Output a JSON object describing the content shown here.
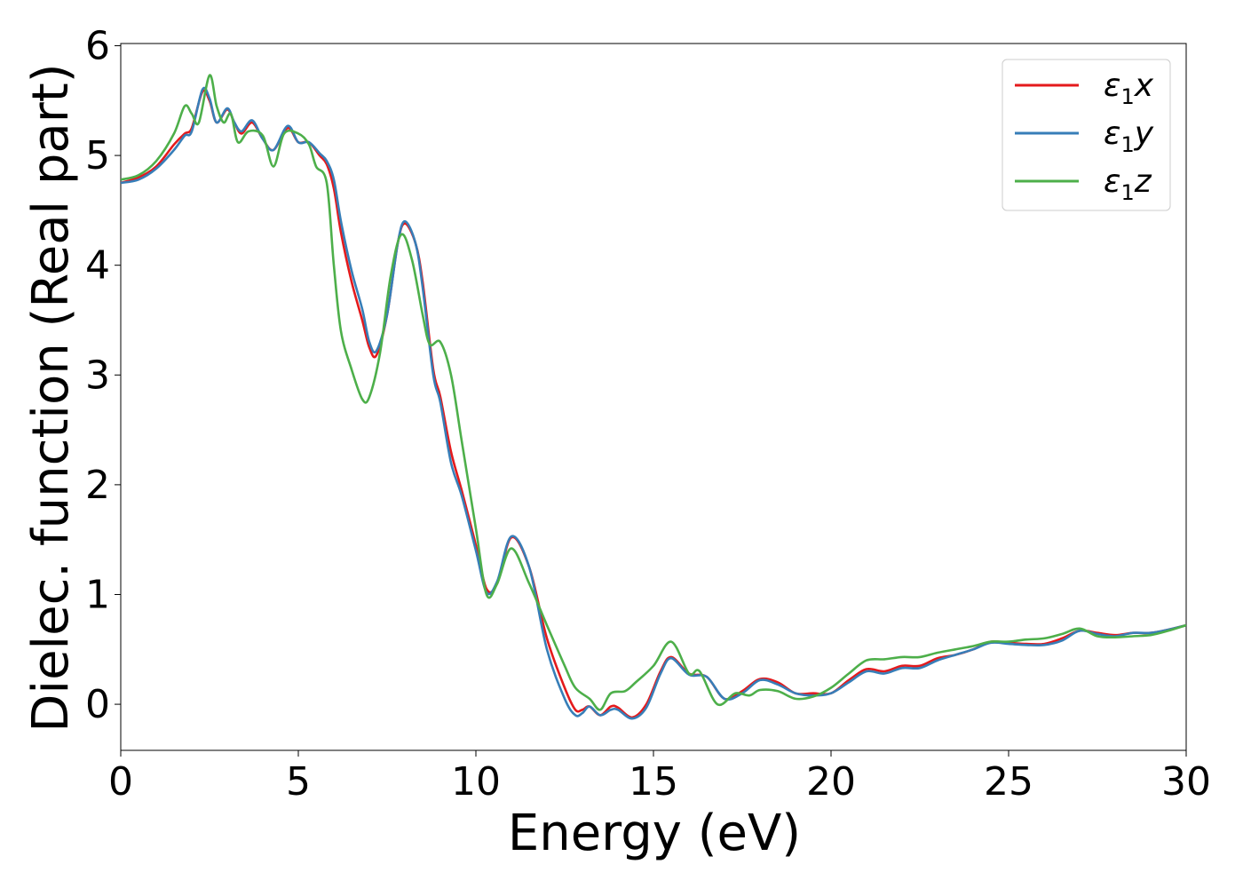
{
  "chart_data": {
    "type": "line",
    "xlabel": "Energy (eV)",
    "ylabel": "Dielec. function (Real part)",
    "xlim": [
      0,
      30
    ],
    "ylim": [
      -0.42,
      6.02
    ],
    "xticks": [
      0,
      5,
      10,
      15,
      20,
      25,
      30
    ],
    "yticks": [
      0,
      1,
      2,
      3,
      4,
      5,
      6
    ],
    "grid": false,
    "legend_position": "top-right",
    "series": [
      {
        "name": "ε₁x",
        "legend_base": "ε",
        "legend_sub": "1",
        "legend_var": "x",
        "color": "#e41a1c",
        "points": [
          [
            0,
            4.75
          ],
          [
            0.5,
            4.8
          ],
          [
            1.0,
            4.9
          ],
          [
            1.5,
            5.1
          ],
          [
            1.8,
            5.2
          ],
          [
            2.0,
            5.25
          ],
          [
            2.3,
            5.58
          ],
          [
            2.5,
            5.5
          ],
          [
            2.7,
            5.3
          ],
          [
            3.0,
            5.42
          ],
          [
            3.2,
            5.3
          ],
          [
            3.4,
            5.2
          ],
          [
            3.7,
            5.3
          ],
          [
            4.0,
            5.15
          ],
          [
            4.3,
            5.05
          ],
          [
            4.7,
            5.25
          ],
          [
            5.0,
            5.12
          ],
          [
            5.3,
            5.12
          ],
          [
            5.6,
            5.0
          ],
          [
            5.8,
            4.92
          ],
          [
            6.0,
            4.7
          ],
          [
            6.2,
            4.3
          ],
          [
            6.5,
            3.85
          ],
          [
            6.8,
            3.5
          ],
          [
            7.0,
            3.25
          ],
          [
            7.2,
            3.18
          ],
          [
            7.5,
            3.55
          ],
          [
            7.8,
            4.2
          ],
          [
            8.0,
            4.38
          ],
          [
            8.3,
            4.2
          ],
          [
            8.5,
            3.85
          ],
          [
            8.8,
            3.05
          ],
          [
            9.0,
            2.8
          ],
          [
            9.3,
            2.3
          ],
          [
            9.6,
            1.95
          ],
          [
            10.0,
            1.45
          ],
          [
            10.3,
            1.05
          ],
          [
            10.6,
            1.1
          ],
          [
            11.0,
            1.52
          ],
          [
            11.5,
            1.25
          ],
          [
            12.0,
            0.6
          ],
          [
            12.5,
            0.15
          ],
          [
            12.8,
            -0.05
          ],
          [
            13.0,
            -0.05
          ],
          [
            13.2,
            -0.02
          ],
          [
            13.5,
            -0.1
          ],
          [
            13.8,
            -0.02
          ],
          [
            14.0,
            -0.03
          ],
          [
            14.4,
            -0.12
          ],
          [
            14.8,
            0.0
          ],
          [
            15.2,
            0.3
          ],
          [
            15.5,
            0.43
          ],
          [
            16.0,
            0.28
          ],
          [
            16.5,
            0.25
          ],
          [
            17.0,
            0.05
          ],
          [
            17.5,
            0.12
          ],
          [
            18.0,
            0.23
          ],
          [
            18.5,
            0.2
          ],
          [
            19.0,
            0.1
          ],
          [
            19.5,
            0.1
          ],
          [
            20.0,
            0.1
          ],
          [
            20.5,
            0.22
          ],
          [
            21.0,
            0.32
          ],
          [
            21.5,
            0.3
          ],
          [
            22.0,
            0.35
          ],
          [
            22.5,
            0.35
          ],
          [
            23.0,
            0.42
          ],
          [
            23.5,
            0.45
          ],
          [
            24.0,
            0.5
          ],
          [
            24.5,
            0.57
          ],
          [
            25.0,
            0.56
          ],
          [
            25.5,
            0.55
          ],
          [
            26.0,
            0.55
          ],
          [
            26.5,
            0.6
          ],
          [
            27.0,
            0.67
          ],
          [
            27.5,
            0.65
          ],
          [
            28.0,
            0.63
          ],
          [
            28.5,
            0.65
          ],
          [
            29.0,
            0.65
          ],
          [
            29.5,
            0.68
          ],
          [
            30.0,
            0.72
          ]
        ]
      },
      {
        "name": "ε₁y",
        "legend_base": "ε",
        "legend_sub": "1",
        "legend_var": "y",
        "color": "#377eb8",
        "points": [
          [
            0,
            4.75
          ],
          [
            0.5,
            4.78
          ],
          [
            1.0,
            4.88
          ],
          [
            1.5,
            5.05
          ],
          [
            1.8,
            5.18
          ],
          [
            2.0,
            5.22
          ],
          [
            2.3,
            5.6
          ],
          [
            2.5,
            5.52
          ],
          [
            2.7,
            5.3
          ],
          [
            3.0,
            5.43
          ],
          [
            3.2,
            5.3
          ],
          [
            3.4,
            5.22
          ],
          [
            3.7,
            5.32
          ],
          [
            4.0,
            5.15
          ],
          [
            4.3,
            5.05
          ],
          [
            4.7,
            5.27
          ],
          [
            5.0,
            5.12
          ],
          [
            5.3,
            5.12
          ],
          [
            5.6,
            5.02
          ],
          [
            5.8,
            4.95
          ],
          [
            6.0,
            4.78
          ],
          [
            6.2,
            4.4
          ],
          [
            6.5,
            3.95
          ],
          [
            6.8,
            3.6
          ],
          [
            7.0,
            3.3
          ],
          [
            7.2,
            3.22
          ],
          [
            7.5,
            3.55
          ],
          [
            7.8,
            4.2
          ],
          [
            8.0,
            4.4
          ],
          [
            8.3,
            4.2
          ],
          [
            8.5,
            3.8
          ],
          [
            8.8,
            3.0
          ],
          [
            9.0,
            2.75
          ],
          [
            9.3,
            2.2
          ],
          [
            9.6,
            1.9
          ],
          [
            10.0,
            1.4
          ],
          [
            10.3,
            1.02
          ],
          [
            10.6,
            1.12
          ],
          [
            11.0,
            1.53
          ],
          [
            11.5,
            1.25
          ],
          [
            12.0,
            0.5
          ],
          [
            12.5,
            0.05
          ],
          [
            12.8,
            -0.1
          ],
          [
            13.0,
            -0.08
          ],
          [
            13.2,
            -0.02
          ],
          [
            13.5,
            -0.1
          ],
          [
            13.8,
            -0.05
          ],
          [
            14.0,
            -0.05
          ],
          [
            14.4,
            -0.13
          ],
          [
            14.8,
            -0.03
          ],
          [
            15.2,
            0.28
          ],
          [
            15.5,
            0.42
          ],
          [
            16.0,
            0.27
          ],
          [
            16.5,
            0.25
          ],
          [
            17.0,
            0.05
          ],
          [
            17.5,
            0.1
          ],
          [
            18.0,
            0.22
          ],
          [
            18.5,
            0.18
          ],
          [
            19.0,
            0.1
          ],
          [
            19.5,
            0.08
          ],
          [
            20.0,
            0.1
          ],
          [
            20.5,
            0.2
          ],
          [
            21.0,
            0.3
          ],
          [
            21.5,
            0.28
          ],
          [
            22.0,
            0.33
          ],
          [
            22.5,
            0.33
          ],
          [
            23.0,
            0.4
          ],
          [
            23.5,
            0.45
          ],
          [
            24.0,
            0.5
          ],
          [
            24.5,
            0.56
          ],
          [
            25.0,
            0.55
          ],
          [
            25.5,
            0.54
          ],
          [
            26.0,
            0.54
          ],
          [
            26.5,
            0.58
          ],
          [
            27.0,
            0.67
          ],
          [
            27.5,
            0.64
          ],
          [
            28.0,
            0.62
          ],
          [
            28.5,
            0.65
          ],
          [
            29.0,
            0.65
          ],
          [
            29.5,
            0.68
          ],
          [
            30.0,
            0.72
          ]
        ]
      },
      {
        "name": "ε₁z",
        "legend_base": "ε",
        "legend_sub": "1",
        "legend_var": "z",
        "color": "#4daf4a",
        "points": [
          [
            0,
            4.78
          ],
          [
            0.5,
            4.82
          ],
          [
            1.0,
            4.95
          ],
          [
            1.5,
            5.2
          ],
          [
            1.8,
            5.45
          ],
          [
            2.0,
            5.38
          ],
          [
            2.2,
            5.3
          ],
          [
            2.5,
            5.73
          ],
          [
            2.7,
            5.45
          ],
          [
            2.9,
            5.3
          ],
          [
            3.1,
            5.38
          ],
          [
            3.3,
            5.12
          ],
          [
            3.6,
            5.22
          ],
          [
            4.0,
            5.18
          ],
          [
            4.3,
            4.9
          ],
          [
            4.6,
            5.2
          ],
          [
            5.0,
            5.2
          ],
          [
            5.3,
            5.1
          ],
          [
            5.5,
            4.9
          ],
          [
            5.8,
            4.75
          ],
          [
            6.0,
            4.0
          ],
          [
            6.2,
            3.4
          ],
          [
            6.5,
            3.05
          ],
          [
            6.8,
            2.78
          ],
          [
            7.0,
            2.8
          ],
          [
            7.3,
            3.2
          ],
          [
            7.6,
            3.9
          ],
          [
            7.9,
            4.28
          ],
          [
            8.2,
            4.05
          ],
          [
            8.5,
            3.55
          ],
          [
            8.7,
            3.28
          ],
          [
            9.0,
            3.3
          ],
          [
            9.3,
            3.0
          ],
          [
            9.6,
            2.4
          ],
          [
            10.0,
            1.6
          ],
          [
            10.3,
            1.0
          ],
          [
            10.6,
            1.1
          ],
          [
            11.0,
            1.42
          ],
          [
            11.5,
            1.1
          ],
          [
            12.0,
            0.72
          ],
          [
            12.5,
            0.35
          ],
          [
            12.8,
            0.15
          ],
          [
            13.2,
            0.05
          ],
          [
            13.5,
            -0.05
          ],
          [
            13.8,
            0.1
          ],
          [
            14.2,
            0.12
          ],
          [
            14.5,
            0.2
          ],
          [
            15.0,
            0.35
          ],
          [
            15.5,
            0.57
          ],
          [
            16.0,
            0.28
          ],
          [
            16.3,
            0.3
          ],
          [
            16.8,
            0.0
          ],
          [
            17.3,
            0.1
          ],
          [
            17.7,
            0.08
          ],
          [
            18.0,
            0.13
          ],
          [
            18.5,
            0.12
          ],
          [
            19.0,
            0.05
          ],
          [
            19.5,
            0.07
          ],
          [
            20.0,
            0.15
          ],
          [
            20.5,
            0.28
          ],
          [
            21.0,
            0.4
          ],
          [
            21.5,
            0.41
          ],
          [
            22.0,
            0.43
          ],
          [
            22.5,
            0.43
          ],
          [
            23.0,
            0.47
          ],
          [
            23.5,
            0.5
          ],
          [
            24.0,
            0.53
          ],
          [
            24.5,
            0.57
          ],
          [
            25.0,
            0.57
          ],
          [
            25.5,
            0.59
          ],
          [
            26.0,
            0.6
          ],
          [
            26.5,
            0.64
          ],
          [
            27.0,
            0.69
          ],
          [
            27.5,
            0.62
          ],
          [
            28.0,
            0.61
          ],
          [
            28.5,
            0.62
          ],
          [
            29.0,
            0.63
          ],
          [
            29.5,
            0.67
          ],
          [
            30.0,
            0.72
          ]
        ]
      }
    ]
  }
}
